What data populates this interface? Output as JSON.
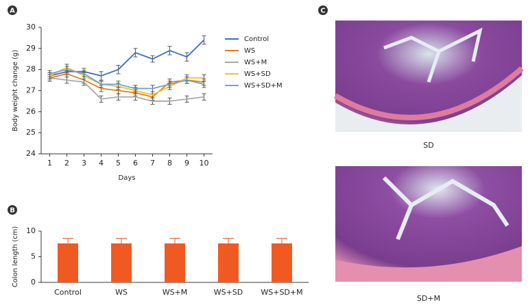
{
  "chart_data": [
    {
      "type": "line",
      "panel": "A",
      "xlabel": "Days",
      "ylabel": "Body weight change (g)",
      "x": [
        1,
        2,
        3,
        4,
        5,
        6,
        7,
        8,
        9,
        10
      ],
      "xlim": [
        0.5,
        10.5
      ],
      "xticks": [
        1,
        2,
        3,
        4,
        5,
        6,
        7,
        8,
        9,
        10
      ],
      "ylim": [
        24,
        30
      ],
      "yticks": [
        24,
        25,
        26,
        27,
        28,
        29,
        30
      ],
      "legend": "right",
      "series": [
        {
          "name": "Control",
          "color": "#3b6cc0",
          "values": [
            27.7,
            27.9,
            27.9,
            27.7,
            28.0,
            28.8,
            28.5,
            28.9,
            28.6,
            29.4
          ],
          "errors": [
            0.15,
            0.15,
            0.15,
            0.2,
            0.2,
            0.2,
            0.15,
            0.2,
            0.2,
            0.2
          ]
        },
        {
          "name": "WS",
          "color": "#f07a1a",
          "values": [
            27.6,
            27.8,
            27.5,
            27.1,
            27.0,
            26.9,
            26.7,
            27.4,
            27.5,
            27.4
          ],
          "errors": [
            0.15,
            0.15,
            0.15,
            0.15,
            0.15,
            0.15,
            0.15,
            0.15,
            0.15,
            0.15
          ]
        },
        {
          "name": "WS+M",
          "color": "#a9a9a9",
          "values": [
            27.6,
            27.5,
            27.4,
            26.6,
            26.7,
            26.7,
            26.5,
            26.5,
            26.6,
            26.7
          ],
          "errors": [
            0.15,
            0.15,
            0.15,
            0.15,
            0.15,
            0.15,
            0.15,
            0.15,
            0.15,
            0.15
          ]
        },
        {
          "name": "WS+SD",
          "color": "#f5c518",
          "values": [
            27.7,
            28.1,
            27.7,
            27.3,
            27.2,
            27.0,
            26.8,
            27.2,
            27.6,
            27.6
          ],
          "errors": [
            0.15,
            0.15,
            0.15,
            0.15,
            0.15,
            0.15,
            0.15,
            0.15,
            0.15,
            0.15
          ]
        },
        {
          "name": "WS+SD+M",
          "color": "#6fa0d8",
          "values": [
            27.8,
            28.0,
            27.8,
            27.3,
            27.3,
            27.1,
            27.1,
            27.3,
            27.5,
            27.3
          ],
          "errors": [
            0.15,
            0.15,
            0.15,
            0.15,
            0.15,
            0.15,
            0.15,
            0.15,
            0.15,
            0.15
          ]
        }
      ]
    },
    {
      "type": "bar",
      "panel": "B",
      "ylabel": "Colon length (cm)",
      "categories": [
        "Control",
        "WS",
        "WS+M",
        "WS+SD",
        "WS+SD+M"
      ],
      "values": [
        7.6,
        7.6,
        7.6,
        7.6,
        7.6
      ],
      "errors": [
        1.0,
        1.0,
        1.0,
        1.0,
        1.0
      ],
      "color": "#f05a22",
      "ylim": [
        0,
        10
      ],
      "yticks": [
        0,
        5,
        10
      ]
    }
  ],
  "figure_c": {
    "panel": "C",
    "captions": [
      "SD",
      "SD+M"
    ]
  }
}
